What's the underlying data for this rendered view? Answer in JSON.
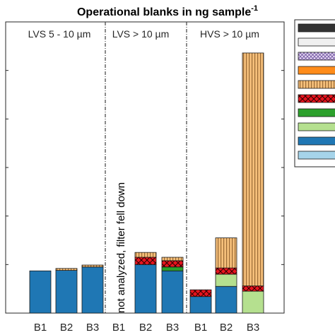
{
  "chart_data": {
    "type": "bar",
    "stacked": true,
    "title": "Operational blanks in ng sample",
    "title_superscript": "-1",
    "categories": [
      "B1",
      "B2",
      "B3",
      "B1",
      "B2",
      "B3",
      "B1",
      "B2",
      "B3"
    ],
    "panels": [
      {
        "label": "LVS 5 - 10 µm",
        "categories": [
          0,
          1,
          2
        ]
      },
      {
        "label": "LVS > 10 µm",
        "categories": [
          3,
          4,
          5
        ]
      },
      {
        "label": "HVS > 10 µm",
        "categories": [
          6,
          7,
          8
        ]
      }
    ],
    "annotation": "not analyzed, filter fell down",
    "ylim": [
      0,
      600
    ],
    "grid": false,
    "legend_position": "right",
    "series": [
      {
        "color": "#a6d4ea",
        "pattern": "solid",
        "values": [
          0,
          0,
          0,
          null,
          0,
          0,
          0,
          0,
          0
        ]
      },
      {
        "color": "#1f77b4",
        "pattern": "solid",
        "values": [
          87,
          88,
          95,
          null,
          100,
          87,
          34,
          55,
          0
        ]
      },
      {
        "color": "#b5e08f",
        "pattern": "solid",
        "values": [
          0,
          0,
          0,
          null,
          0,
          0,
          0,
          25,
          45
        ]
      },
      {
        "color": "#2ca02c",
        "pattern": "solid",
        "values": [
          0,
          0,
          0,
          null,
          0,
          8,
          0,
          0,
          0
        ]
      },
      {
        "color": "#e8141e",
        "pattern": "checker",
        "values": [
          0,
          0,
          0,
          null,
          15,
          13,
          14,
          13,
          11
        ]
      },
      {
        "color": "#f5bf7a",
        "pattern": "vstripe",
        "values": [
          0,
          4,
          4,
          null,
          10,
          7,
          0,
          62,
          480
        ]
      },
      {
        "color": "#ff8c1a",
        "pattern": "solid",
        "values": [
          0,
          0,
          0,
          null,
          0,
          0,
          0,
          0,
          0
        ]
      },
      {
        "color": "#c8b4e0",
        "pattern": "dots",
        "values": [
          0,
          0,
          0,
          null,
          0,
          0,
          0,
          0,
          0
        ]
      },
      {
        "color": "#f0f0f0",
        "pattern": "solid",
        "values": [
          0,
          0,
          0,
          null,
          0,
          0,
          0,
          0,
          0
        ]
      },
      {
        "color": "#333333",
        "pattern": "solid",
        "values": [
          0,
          0,
          0,
          null,
          0,
          0,
          0,
          0,
          0
        ]
      }
    ]
  }
}
